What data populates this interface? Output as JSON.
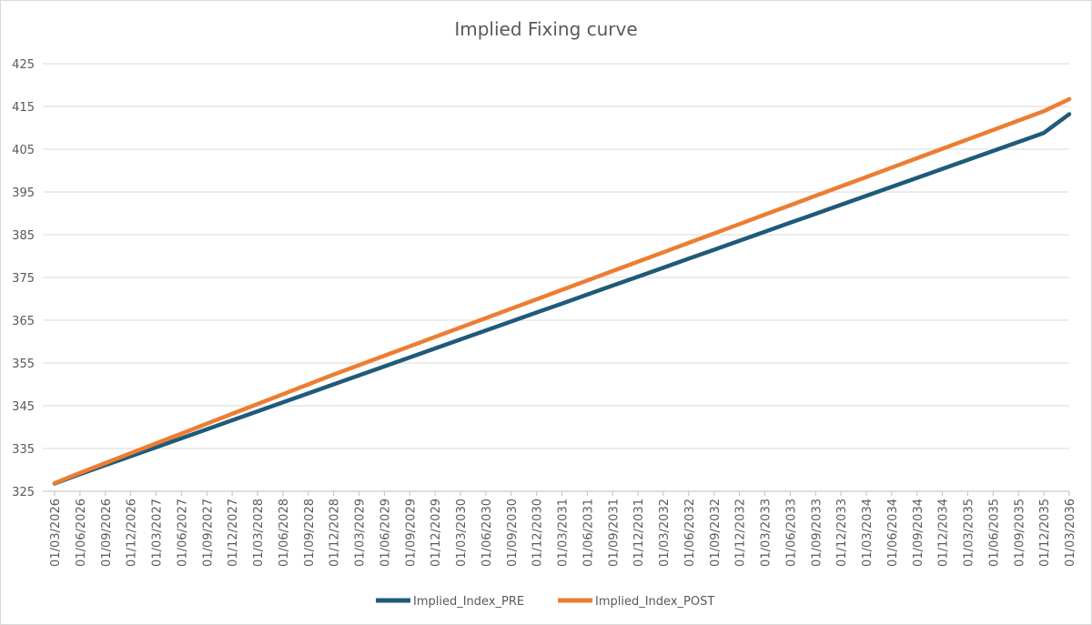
{
  "chart_data": {
    "type": "line",
    "title": "Implied Fixing curve",
    "xlabel": "",
    "ylabel": "",
    "ylim": [
      325,
      425
    ],
    "y_ticks": [
      325,
      335,
      345,
      355,
      365,
      375,
      385,
      395,
      405,
      415,
      425
    ],
    "grid": true,
    "legend_position": "bottom",
    "categories": [
      "01/03/2026",
      "01/06/2026",
      "01/09/2026",
      "01/12/2026",
      "01/03/2027",
      "01/06/2027",
      "01/09/2027",
      "01/12/2027",
      "01/03/2028",
      "01/06/2028",
      "01/09/2028",
      "01/12/2028",
      "01/03/2029",
      "01/06/2029",
      "01/09/2029",
      "01/12/2029",
      "01/03/2030",
      "01/06/2030",
      "01/09/2030",
      "01/12/2030",
      "01/03/2031",
      "01/06/2031",
      "01/09/2031",
      "01/12/2031",
      "01/03/2032",
      "01/06/2032",
      "01/09/2032",
      "01/12/2032",
      "01/03/2033",
      "01/06/2033",
      "01/09/2033",
      "01/12/2033",
      "01/03/2034",
      "01/06/2034",
      "01/09/2034",
      "01/12/2034",
      "01/03/2035",
      "01/06/2035",
      "01/09/2035",
      "01/12/2035",
      "01/03/2036"
    ],
    "series": [
      {
        "name": "Implied_Index_PRE",
        "color": "#1f5a7a",
        "values": [
          326.8,
          329.0,
          331.1,
          333.2,
          335.3,
          337.4,
          339.5,
          341.6,
          343.7,
          345.8,
          347.9,
          350.0,
          352.1,
          354.2,
          356.3,
          358.4,
          360.5,
          362.6,
          364.7,
          366.8,
          368.9,
          371.0,
          373.1,
          375.2,
          377.3,
          379.4,
          381.5,
          383.6,
          385.7,
          387.8,
          389.9,
          392.0,
          394.1,
          396.2,
          398.3,
          400.4,
          402.5,
          404.6,
          406.7,
          408.8,
          413.2
        ]
      },
      {
        "name": "Implied_Index_POST",
        "color": "#ed7d31",
        "values": [
          326.9,
          329.3,
          331.6,
          333.9,
          336.2,
          338.5,
          340.8,
          343.1,
          345.4,
          347.7,
          350.0,
          352.3,
          354.5,
          356.7,
          358.9,
          361.1,
          363.3,
          365.5,
          367.7,
          369.9,
          372.1,
          374.3,
          376.5,
          378.7,
          380.9,
          383.1,
          385.3,
          387.5,
          389.7,
          391.9,
          394.1,
          396.3,
          398.5,
          400.7,
          402.9,
          405.1,
          407.3,
          409.5,
          411.7,
          413.9,
          416.7
        ]
      }
    ]
  }
}
